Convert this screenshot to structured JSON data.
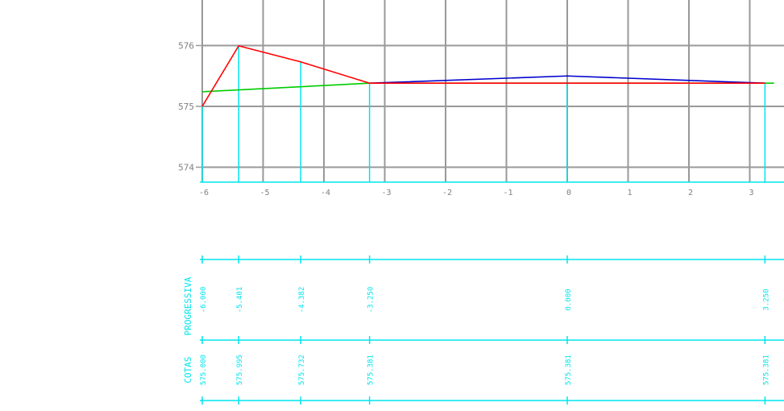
{
  "chart_data": {
    "type": "line",
    "y_ticks": [
      574,
      575,
      576
    ],
    "x_ticks": [
      -6,
      -5,
      -4,
      -3,
      -2,
      -1,
      0,
      1,
      2,
      3
    ],
    "x_tick_labels": [
      "-6",
      "-5",
      "-4",
      "-3",
      "-2",
      "-1",
      "0",
      "1",
      "2",
      "3"
    ],
    "series": [
      {
        "color": "#ff0000",
        "points": [
          [
            -6.0,
            575.0
          ],
          [
            -5.401,
            575.995
          ],
          [
            -4.382,
            575.732
          ],
          [
            -3.25,
            575.381
          ],
          [
            3.25,
            575.381
          ]
        ]
      },
      {
        "color": "#0000cc",
        "points": [
          [
            -3.25,
            575.381
          ],
          [
            0.0,
            575.5
          ],
          [
            3.25,
            575.381
          ]
        ]
      },
      {
        "color": "#00cc00",
        "points": [
          [
            -6.0,
            575.24
          ],
          [
            -3.25,
            575.381
          ],
          [
            3.4,
            575.381
          ]
        ]
      }
    ],
    "stations": [
      -6.0,
      -5.401,
      -4.382,
      -3.25,
      0.0,
      3.25
    ],
    "grid_x": [
      -6,
      -5,
      -4,
      -3,
      -2,
      -1,
      0,
      1,
      2,
      3,
      4
    ]
  },
  "table": {
    "row_progressiva": {
      "label": "PROGRESSIVA",
      "values": [
        "-6.000",
        "-5.401",
        "-4.382",
        "-3.250",
        "0.000",
        "3.250"
      ]
    },
    "row_cotas": {
      "label": "COTAS",
      "values": [
        "575.000",
        "575.995",
        "575.732",
        "575.381",
        "575.381",
        "575.381"
      ]
    }
  },
  "colors": {
    "grid": "#999999",
    "axis_text": "#808080",
    "cyan": "#00e5ee"
  }
}
